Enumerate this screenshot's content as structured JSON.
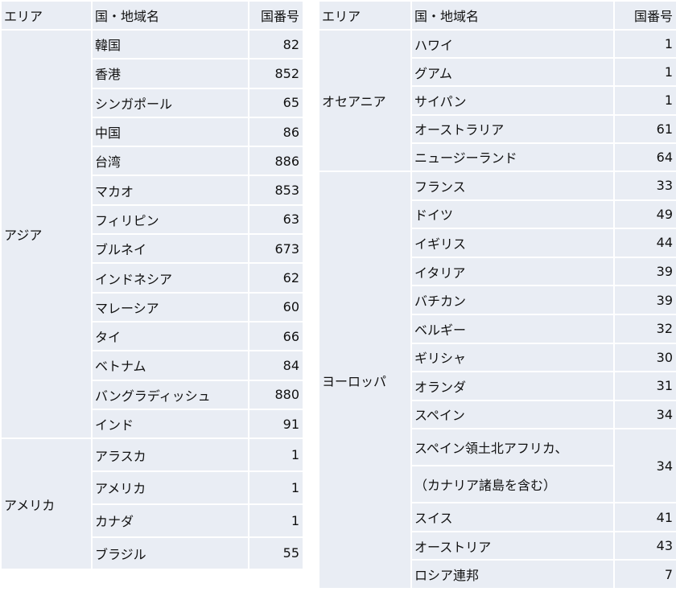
{
  "colors": {
    "cell_fill": "#e9edf4",
    "border": "#ffffff"
  },
  "headers": {
    "area": "エリア",
    "country": "国・地域名",
    "code": "国番号"
  },
  "left_table": {
    "groups": [
      {
        "area": "アジア",
        "countries": [
          {
            "name": "韓国",
            "code": "82"
          },
          {
            "name": "香港",
            "code": "852"
          },
          {
            "name": "シンガポール",
            "code": "65"
          },
          {
            "name": "中国",
            "code": "86"
          },
          {
            "name": "台湾",
            "code": "886"
          },
          {
            "name": "マカオ",
            "code": "853"
          },
          {
            "name": "フィリピン",
            "code": "63"
          },
          {
            "name": "ブルネイ",
            "code": "673"
          },
          {
            "name": "インドネシア",
            "code": "62"
          },
          {
            "name": "マレーシア",
            "code": "60"
          },
          {
            "name": "タイ",
            "code": "66"
          },
          {
            "name": "ベトナム",
            "code": "84"
          },
          {
            "name": "バングラディッシュ",
            "code": "880"
          },
          {
            "name": "インド",
            "code": "91"
          }
        ]
      },
      {
        "area": "アメリカ",
        "countries": [
          {
            "name": "アラスカ",
            "code": "1"
          },
          {
            "name": "アメリカ",
            "code": "1"
          },
          {
            "name": "カナダ",
            "code": "1"
          },
          {
            "name": "ブラジル",
            "code": "55"
          }
        ]
      }
    ]
  },
  "right_table": {
    "groups": [
      {
        "area": "オセアニア",
        "countries": [
          {
            "name": "ハワイ",
            "code": "1"
          },
          {
            "name": "グアム",
            "code": "1"
          },
          {
            "name": "サイパン",
            "code": "1"
          },
          {
            "name": "オーストラリア",
            "code": "61"
          },
          {
            "name": "ニュージーランド",
            "code": "64"
          }
        ]
      },
      {
        "area": "ヨーロッパ",
        "countries": [
          {
            "name": "フランス",
            "code": "33"
          },
          {
            "name": "ドイツ",
            "code": "49"
          },
          {
            "name": "イギリス",
            "code": "44"
          },
          {
            "name": "イタリア",
            "code": "39"
          },
          {
            "name": "バチカン",
            "code": "39"
          },
          {
            "name": "ベルギー",
            "code": "32"
          },
          {
            "name": "ギリシャ",
            "code": "30"
          },
          {
            "name": "オランダ",
            "code": "31"
          },
          {
            "name": "スペイン",
            "code": "34"
          },
          {
            "name_lines": [
              "スペイン領土北アフリカ、",
              "（カナリア諸島を含む）"
            ],
            "code": "34"
          },
          {
            "name": "スイス",
            "code": "41"
          },
          {
            "name": "オーストリア",
            "code": "43"
          },
          {
            "name": "ロシア連邦",
            "code": "7"
          }
        ]
      }
    ]
  }
}
